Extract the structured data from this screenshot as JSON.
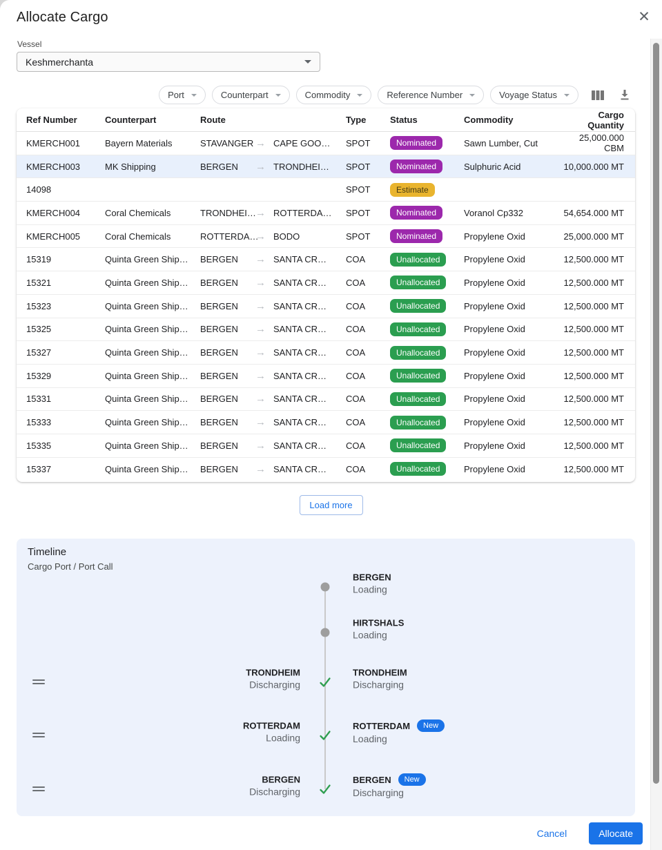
{
  "dialog": {
    "title": "Allocate Cargo",
    "vessel": {
      "label": "Vessel",
      "value": "Keshmerchanta"
    },
    "buttons": {
      "cancel": "Cancel",
      "allocate": "Allocate",
      "load_more": "Load more"
    }
  },
  "filters": {
    "chips": [
      "Port",
      "Counterpart",
      "Commodity",
      "Reference Number",
      "Voyage Status"
    ],
    "icons": [
      "view-columns-icon",
      "download-icon"
    ]
  },
  "table": {
    "columns": [
      "Ref Number",
      "Counterpart",
      "Route",
      "Type",
      "Status",
      "Commodity",
      "Cargo Quantity"
    ],
    "rows": [
      {
        "ref": "KMERCH001",
        "counterpart": "Bayern Materials",
        "origin": "STAVANGER",
        "destination": "CAPE GOO…",
        "type": "SPOT",
        "status": "Nominated",
        "commodity": "Sawn Lumber, Cut",
        "quantity": "25,000.000 CBM",
        "selected": false
      },
      {
        "ref": "KMERCH003",
        "counterpart": "MK Shipping",
        "origin": "BERGEN",
        "destination": "TRONDHEI…",
        "type": "SPOT",
        "status": "Nominated",
        "commodity": "Sulphuric Acid",
        "quantity": "10,000.000 MT",
        "selected": true
      },
      {
        "ref": "14098",
        "counterpart": "",
        "origin": "",
        "destination": "",
        "type": "SPOT",
        "status": "Estimate",
        "commodity": "",
        "quantity": "",
        "selected": false
      },
      {
        "ref": "KMERCH004",
        "counterpart": "Coral Chemicals",
        "origin": "TRONDHEI…",
        "destination": "ROTTERDA…",
        "type": "SPOT",
        "status": "Nominated",
        "commodity": "Voranol Cp332",
        "quantity": "54,654.000 MT",
        "selected": false
      },
      {
        "ref": "KMERCH005",
        "counterpart": "Coral Chemicals",
        "origin": "ROTTERDA…",
        "destination": "BODO",
        "type": "SPOT",
        "status": "Nominated",
        "commodity": "Propylene Oxid",
        "quantity": "25,000.000 MT",
        "selected": false
      },
      {
        "ref": "15319",
        "counterpart": "Quinta Green Ship…",
        "origin": "BERGEN",
        "destination": "SANTA CR…",
        "type": "COA",
        "status": "Unallocated",
        "commodity": "Propylene Oxid",
        "quantity": "12,500.000 MT",
        "selected": false
      },
      {
        "ref": "15321",
        "counterpart": "Quinta Green Ship…",
        "origin": "BERGEN",
        "destination": "SANTA CR…",
        "type": "COA",
        "status": "Unallocated",
        "commodity": "Propylene Oxid",
        "quantity": "12,500.000 MT",
        "selected": false
      },
      {
        "ref": "15323",
        "counterpart": "Quinta Green Ship…",
        "origin": "BERGEN",
        "destination": "SANTA CR…",
        "type": "COA",
        "status": "Unallocated",
        "commodity": "Propylene Oxid",
        "quantity": "12,500.000 MT",
        "selected": false
      },
      {
        "ref": "15325",
        "counterpart": "Quinta Green Ship…",
        "origin": "BERGEN",
        "destination": "SANTA CR…",
        "type": "COA",
        "status": "Unallocated",
        "commodity": "Propylene Oxid",
        "quantity": "12,500.000 MT",
        "selected": false
      },
      {
        "ref": "15327",
        "counterpart": "Quinta Green Ship…",
        "origin": "BERGEN",
        "destination": "SANTA CR…",
        "type": "COA",
        "status": "Unallocated",
        "commodity": "Propylene Oxid",
        "quantity": "12,500.000 MT",
        "selected": false
      },
      {
        "ref": "15329",
        "counterpart": "Quinta Green Ship…",
        "origin": "BERGEN",
        "destination": "SANTA CR…",
        "type": "COA",
        "status": "Unallocated",
        "commodity": "Propylene Oxid",
        "quantity": "12,500.000 MT",
        "selected": false
      },
      {
        "ref": "15331",
        "counterpart": "Quinta Green Ship…",
        "origin": "BERGEN",
        "destination": "SANTA CR…",
        "type": "COA",
        "status": "Unallocated",
        "commodity": "Propylene Oxid",
        "quantity": "12,500.000 MT",
        "selected": false
      },
      {
        "ref": "15333",
        "counterpart": "Quinta Green Ship…",
        "origin": "BERGEN",
        "destination": "SANTA CR…",
        "type": "COA",
        "status": "Unallocated",
        "commodity": "Propylene Oxid",
        "quantity": "12,500.000 MT",
        "selected": false
      },
      {
        "ref": "15335",
        "counterpart": "Quinta Green Ship…",
        "origin": "BERGEN",
        "destination": "SANTA CR…",
        "type": "COA",
        "status": "Unallocated",
        "commodity": "Propylene Oxid",
        "quantity": "12,500.000 MT",
        "selected": false
      },
      {
        "ref": "15337",
        "counterpart": "Quinta Green Ship…",
        "origin": "BERGEN",
        "destination": "SANTA CR…",
        "type": "COA",
        "status": "Unallocated",
        "commodity": "Propylene Oxid",
        "quantity": "12,500.000 MT",
        "selected": false
      }
    ]
  },
  "status_styles": {
    "Nominated": {
      "bg": "#9c28ac",
      "fg": "#ffffff"
    },
    "Estimate": {
      "bg": "#e9b42e",
      "fg": "#433914"
    },
    "Unallocated": {
      "bg": "#2b9e50",
      "fg": "#ffffff"
    }
  },
  "timeline": {
    "title": "Timeline",
    "subtitle": "Cargo Port / Port Call",
    "new_badge_label": "New",
    "items": [
      {
        "port": "BERGEN",
        "activity": "Loading",
        "marker": "dot",
        "left_label": false,
        "drag": false,
        "new_badge": false
      },
      {
        "port": "HIRTSHALS",
        "activity": "Loading",
        "marker": "dot",
        "left_label": false,
        "drag": false,
        "new_badge": false
      },
      {
        "port": "TRONDHEIM",
        "activity": "Discharging",
        "marker": "check",
        "left_label": true,
        "drag": true,
        "new_badge": false
      },
      {
        "port": "ROTTERDAM",
        "activity": "Loading",
        "marker": "check",
        "left_label": true,
        "drag": true,
        "new_badge": true
      },
      {
        "port": "BERGEN",
        "activity": "Discharging",
        "marker": "check",
        "left_label": true,
        "drag": true,
        "new_badge": true
      }
    ]
  },
  "colors": {
    "accent_blue": "#1a73e8",
    "selected_row_bg": "#e8f0fc",
    "timeline_bg": "#edf2fc",
    "check_green": "#2e9e4f",
    "pending_dot_gray": "#9e9e9e"
  }
}
